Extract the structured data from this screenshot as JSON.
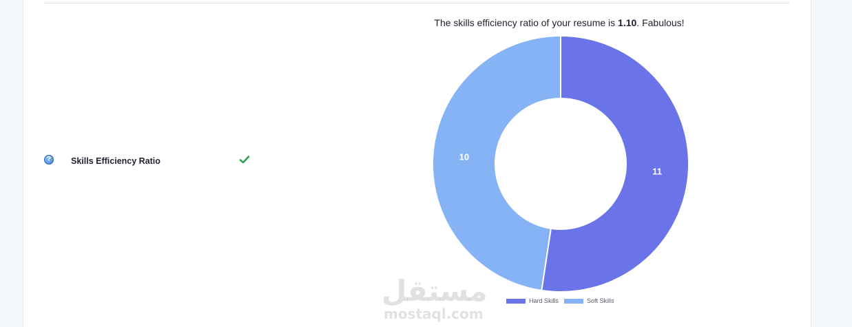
{
  "summary": {
    "prefix": "The skills efficiency ratio of your resume is ",
    "ratio": "1.10",
    "suffix": ". Fabulous!"
  },
  "metric": {
    "help_icon": "question-circle-icon",
    "label": "Skills Efficiency Ratio",
    "status_icon": "checkmark-icon",
    "status_color": "#2e9e57"
  },
  "chart_data": {
    "type": "pie",
    "style": "doughnut",
    "categories": [
      "Hard Skills",
      "Soft Skills"
    ],
    "values": [
      11,
      10
    ],
    "colors": [
      "#6a74e8",
      "#86b3f5"
    ],
    "legend": "bottom"
  },
  "watermark": {
    "arabic": "مستقل",
    "latin": "mostaql.com"
  }
}
